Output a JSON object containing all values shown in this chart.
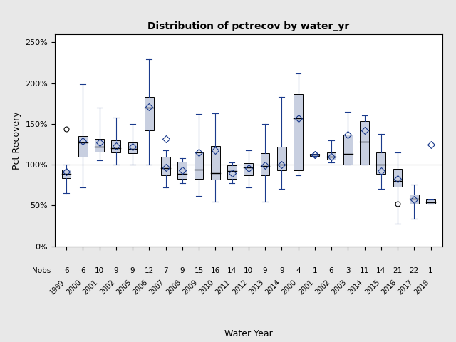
{
  "title": "Distribution of pctrecov by water_yr",
  "xlabel": "Water Year",
  "ylabel": "Pct Recovery",
  "ylim": [
    0.0,
    2.6
  ],
  "yticks": [
    0.0,
    0.5,
    1.0,
    1.5,
    2.0,
    2.5
  ],
  "ytick_labels": [
    "0%",
    "50%",
    "100%",
    "150%",
    "200%",
    "250%"
  ],
  "ref_line": 1.0,
  "box_facecolor": "#c8cfe0",
  "box_edge_color": "#000000",
  "whisker_color": "#1a3a8c",
  "median_color": "#000000",
  "mean_marker_color": "#1a3a8c",
  "outlier_open_color": "#000000",
  "background_color": "#e8e8e8",
  "plot_bg": "#ffffff",
  "nobs_label": "Nobs",
  "years": [
    "1999",
    "2000",
    "2001",
    "2002",
    "2005",
    "2006",
    "2007",
    "2008",
    "2009",
    "2010",
    "2011",
    "2012",
    "2013",
    "2014",
    "2000",
    "2001",
    "2002",
    "2003",
    "2014",
    "2015",
    "2016",
    "2017",
    "2018"
  ],
  "nobs": [
    6,
    6,
    10,
    9,
    9,
    12,
    7,
    9,
    15,
    16,
    14,
    10,
    9,
    9,
    4,
    1,
    6,
    3,
    11,
    14,
    21,
    22,
    1
  ],
  "boxes": [
    {
      "q1": 0.835,
      "median": 0.885,
      "q3": 0.94,
      "mean": 0.91,
      "whislo": 0.65,
      "whishi": 1.0,
      "fliers_circle": [
        1.44
      ],
      "fliers_diamond": []
    },
    {
      "q1": 1.1,
      "median": 1.27,
      "q3": 1.35,
      "mean": 1.29,
      "whislo": 0.72,
      "whishi": 1.99,
      "fliers_circle": [],
      "fliers_diamond": []
    },
    {
      "q1": 1.16,
      "median": 1.22,
      "q3": 1.32,
      "mean": 1.27,
      "whislo": 1.05,
      "whishi": 1.7,
      "fliers_circle": [],
      "fliers_diamond": []
    },
    {
      "q1": 1.15,
      "median": 1.2,
      "q3": 1.3,
      "mean": 1.23,
      "whislo": 1.0,
      "whishi": 1.58,
      "fliers_circle": [],
      "fliers_diamond": []
    },
    {
      "q1": 1.14,
      "median": 1.19,
      "q3": 1.27,
      "mean": 1.22,
      "whislo": 1.0,
      "whishi": 1.5,
      "fliers_circle": [],
      "fliers_diamond": []
    },
    {
      "q1": 1.42,
      "median": 1.7,
      "q3": 1.83,
      "mean": 1.71,
      "whislo": 1.0,
      "whishi": 2.29,
      "fliers_circle": [],
      "fliers_diamond": []
    },
    {
      "q1": 0.87,
      "median": 0.96,
      "q3": 1.1,
      "mean": 0.97,
      "whislo": 0.72,
      "whishi": 1.18,
      "fliers_circle": [],
      "fliers_diamond": [
        1.32
      ]
    },
    {
      "q1": 0.83,
      "median": 0.89,
      "q3": 1.04,
      "mean": 0.93,
      "whislo": 0.77,
      "whishi": 1.08,
      "fliers_circle": [],
      "fliers_diamond": []
    },
    {
      "q1": 0.83,
      "median": 0.94,
      "q3": 1.15,
      "mean": 1.15,
      "whislo": 0.62,
      "whishi": 1.62,
      "fliers_circle": [],
      "fliers_diamond": []
    },
    {
      "q1": 0.82,
      "median": 0.9,
      "q3": 1.23,
      "mean": 1.18,
      "whislo": 0.55,
      "whishi": 1.63,
      "fliers_circle": [],
      "fliers_diamond": []
    },
    {
      "q1": 0.83,
      "median": 0.92,
      "q3": 0.99,
      "mean": 0.9,
      "whislo": 0.77,
      "whishi": 1.03,
      "fliers_circle": [],
      "fliers_diamond": []
    },
    {
      "q1": 0.87,
      "median": 0.97,
      "q3": 1.02,
      "mean": 0.96,
      "whislo": 0.72,
      "whishi": 1.18,
      "fliers_circle": [],
      "fliers_diamond": []
    },
    {
      "q1": 0.87,
      "median": 0.98,
      "q3": 1.14,
      "mean": 0.99,
      "whislo": 0.55,
      "whishi": 1.5,
      "fliers_circle": [],
      "fliers_diamond": []
    },
    {
      "q1": 0.93,
      "median": 1.0,
      "q3": 1.22,
      "mean": 1.0,
      "whislo": 0.7,
      "whishi": 1.83,
      "fliers_circle": [],
      "fliers_diamond": []
    },
    {
      "q1": 0.93,
      "median": 1.57,
      "q3": 1.87,
      "mean": 1.57,
      "whislo": 0.87,
      "whishi": 2.12,
      "fliers_circle": [],
      "fliers_diamond": []
    },
    {
      "q1": 1.105,
      "median": 1.12,
      "q3": 1.135,
      "mean": 1.12,
      "whislo": 1.105,
      "whishi": 1.135,
      "fliers_circle": [],
      "fliers_diamond": [
        1.12
      ]
    },
    {
      "q1": 1.06,
      "median": 1.1,
      "q3": 1.15,
      "mean": 1.1,
      "whislo": 1.03,
      "whishi": 1.3,
      "fliers_circle": [],
      "fliers_diamond": []
    },
    {
      "q1": 1.0,
      "median": 1.13,
      "q3": 1.37,
      "mean": 1.37,
      "whislo": 1.0,
      "whishi": 1.65,
      "fliers_circle": [],
      "fliers_diamond": []
    },
    {
      "q1": 1.0,
      "median": 1.28,
      "q3": 1.53,
      "mean": 1.42,
      "whislo": 1.0,
      "whishi": 1.6,
      "fliers_circle": [],
      "fliers_diamond": []
    },
    {
      "q1": 0.89,
      "median": 1.0,
      "q3": 1.15,
      "mean": 0.92,
      "whislo": 0.7,
      "whishi": 1.38,
      "fliers_circle": [],
      "fliers_diamond": []
    },
    {
      "q1": 0.73,
      "median": 0.8,
      "q3": 0.95,
      "mean": 0.83,
      "whislo": 0.28,
      "whishi": 1.15,
      "fliers_circle": [
        0.52
      ],
      "fliers_diamond": []
    },
    {
      "q1": 0.52,
      "median": 0.58,
      "q3": 0.63,
      "mean": 0.57,
      "whislo": 0.34,
      "whishi": 0.76,
      "fliers_circle": [],
      "fliers_diamond": []
    },
    {
      "q1": 0.52,
      "median": 0.54,
      "q3": 0.57,
      "mean": 1.25,
      "whislo": 0.52,
      "whishi": 0.57,
      "fliers_circle": [],
      "fliers_diamond": []
    }
  ]
}
